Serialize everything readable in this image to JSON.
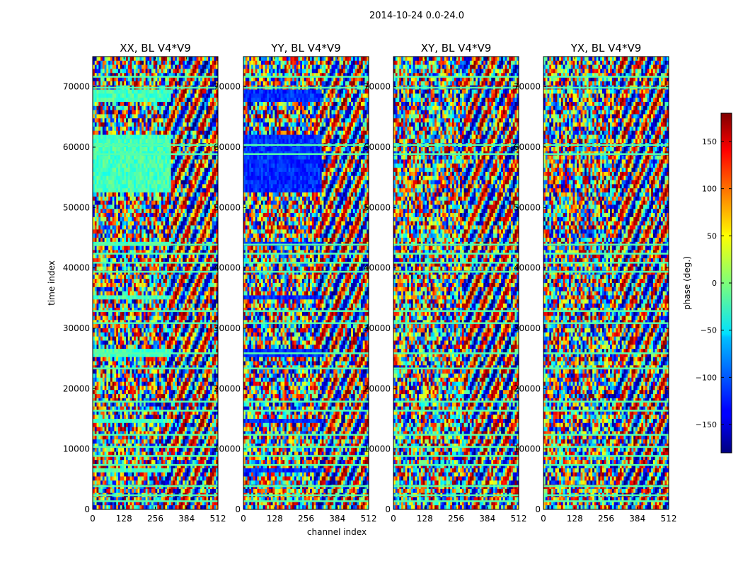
{
  "figure": {
    "suptitle": "2014-10-24 0.0-24.0",
    "xlabel": "channel index",
    "ylabel": "time index"
  },
  "colorbar": {
    "label": "phase (deg.)",
    "ticks": [
      -150,
      -100,
      -50,
      0,
      50,
      100,
      150
    ],
    "tick_labels": [
      "−150",
      "−100",
      "−50",
      "0",
      "50",
      "100",
      "150"
    ],
    "vmin": -180,
    "vmax": 180,
    "colormap": "jet"
  },
  "chart_data": {
    "type": "heatmap",
    "xlim": [
      0,
      512
    ],
    "ylim": [
      0,
      75000
    ],
    "xticks": [
      0,
      128,
      256,
      384,
      512
    ],
    "yticks": [
      0,
      10000,
      20000,
      30000,
      40000,
      50000,
      60000,
      70000
    ],
    "panels": [
      {
        "title": "XX, BL V4*V9",
        "flat_phase": -20
      },
      {
        "title": "YY, BL V4*V9",
        "flat_phase": -120
      },
      {
        "title": "XY, BL V4*V9",
        "flat_phase": null
      },
      {
        "title": "YX, BL V4*V9",
        "flat_phase": null
      }
    ]
  }
}
